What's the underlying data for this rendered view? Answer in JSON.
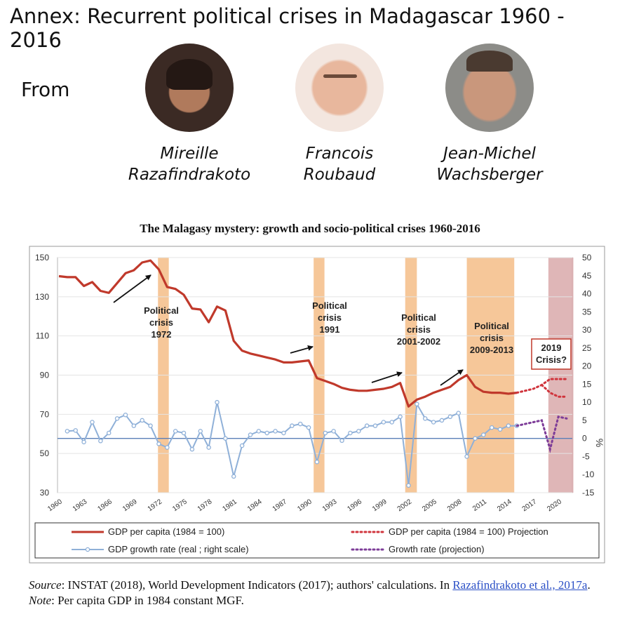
{
  "page": {
    "title": "Annex: Recurrent political crises in Madagascar 1960 - 2016",
    "from_label": "From",
    "authors": [
      {
        "first": "Mireille",
        "last": "Razafindrakoto"
      },
      {
        "first": "Francois",
        "last": "Roubaud"
      },
      {
        "first": "Jean-Michel",
        "last": "Wachsberger"
      }
    ]
  },
  "source_note": {
    "source_label": "Source",
    "text1": ": INSTAT (2018), World Development Indicators (2017); authors' calculations. In ",
    "link_text": "Razafindrakoto et al., 2017a",
    "text2": ". ",
    "note_label": "Note",
    "text3": ": Per capita GDP in 1984 constant MGF."
  },
  "chart_data": {
    "type": "line",
    "title": "The Malagasy mystery: growth and socio-political crises 1960-2016",
    "x_ticks": [
      1960,
      1963,
      1966,
      1969,
      1972,
      1975,
      1978,
      1981,
      1984,
      1987,
      1990,
      1993,
      1996,
      1999,
      2002,
      2005,
      2008,
      2011,
      2014,
      2017,
      2020
    ],
    "xlim": [
      1960,
      2021
    ],
    "y_left": {
      "ticks": [
        30,
        50,
        70,
        90,
        110,
        130,
        150
      ],
      "lim": [
        30,
        150
      ]
    },
    "y_right": {
      "ticks": [
        -15,
        -10,
        -5,
        0,
        5,
        10,
        15,
        20,
        25,
        30,
        35,
        40,
        45,
        50
      ],
      "lim": [
        -15,
        50
      ],
      "label": "%"
    },
    "crises": [
      {
        "label_lines": [
          "Political",
          "crisis",
          "1972"
        ],
        "start": 1971.9,
        "end": 1973.2
      },
      {
        "label_lines": [
          "Political",
          "crisis",
          "1991"
        ],
        "start": 1990.6,
        "end": 1991.9
      },
      {
        "label_lines": [
          "Political",
          "crisis",
          "2001-2002"
        ],
        "start": 2001.6,
        "end": 2003.0
      },
      {
        "label_lines": [
          "Political",
          "crisis",
          "2009-2013"
        ],
        "start": 2009.0,
        "end": 2014.7
      },
      {
        "label_lines": [
          "2019",
          "Crisis?"
        ],
        "start": 2018.8,
        "end": 2021.8
      }
    ],
    "series": [
      {
        "name": "GDP per capita (1984 = 100)",
        "axis": "left",
        "color": "#c0392b",
        "style": "solid",
        "x": [
          1960,
          1961,
          1962,
          1963,
          1964,
          1965,
          1966,
          1967,
          1968,
          1969,
          1970,
          1971,
          1972,
          1973,
          1974,
          1975,
          1976,
          1977,
          1978,
          1979,
          1980,
          1981,
          1982,
          1983,
          1984,
          1985,
          1986,
          1987,
          1988,
          1989,
          1990,
          1991,
          1992,
          1993,
          1994,
          1995,
          1996,
          1997,
          1998,
          1999,
          2000,
          2001,
          2002,
          2003,
          2004,
          2005,
          2006,
          2007,
          2008,
          2009,
          2010,
          2011,
          2012,
          2013,
          2014,
          2015
        ],
        "values": [
          140.5,
          140,
          140,
          135.5,
          137.5,
          133,
          132,
          137,
          142,
          143.5,
          147.5,
          148.5,
          144,
          135,
          134,
          131,
          124,
          123.5,
          117,
          125,
          123,
          107.5,
          102.5,
          101,
          100,
          99,
          98,
          96.5,
          96.5,
          97,
          97.5,
          88.5,
          87,
          85.5,
          83.5,
          82.5,
          82,
          82,
          82.5,
          83,
          84,
          86,
          74,
          77.5,
          79,
          81,
          82.5,
          84,
          87.5,
          90,
          84,
          81.5,
          81,
          81,
          80.5,
          81
        ]
      },
      {
        "name": "GDP per capita (1984 = 100) Projection",
        "axis": "left",
        "color": "#d0343c",
        "style": "dotted",
        "x": [
          2015,
          2016,
          2017,
          2018,
          2019,
          2020,
          2021
        ],
        "values": [
          81,
          82,
          83,
          85,
          88,
          88,
          88
        ]
      },
      {
        "name": "GDP per capita (1984 = 100) Projection",
        "axis": "left",
        "color": "#d0343c",
        "style": "dotted",
        "x": [
          2018,
          2019,
          2020,
          2021
        ],
        "values": [
          85,
          81,
          79,
          79
        ]
      },
      {
        "name": "GDP growth rate (real ; right scale)",
        "axis": "right",
        "color": "#8fb0d8",
        "style": "marker",
        "x": [
          1961,
          1962,
          1963,
          1964,
          1965,
          1966,
          1967,
          1968,
          1969,
          1970,
          1971,
          1972,
          1973,
          1974,
          1975,
          1976,
          1977,
          1978,
          1979,
          1980,
          1981,
          1982,
          1983,
          1984,
          1985,
          1986,
          1987,
          1988,
          1989,
          1990,
          1991,
          1992,
          1993,
          1994,
          1995,
          1996,
          1997,
          1998,
          1999,
          2000,
          2001,
          2002,
          2003,
          2004,
          2005,
          2006,
          2007,
          2008,
          2009,
          2010,
          2011,
          2012,
          2013,
          2014,
          2015
        ],
        "values": [
          2,
          2.2,
          -1,
          4.5,
          -0.7,
          1.5,
          5.5,
          6.5,
          3.5,
          5,
          3.5,
          -1.5,
          -2.5,
          2,
          1.5,
          -3,
          2,
          -2.5,
          10,
          0,
          -10.5,
          -2,
          1,
          2,
          1.5,
          2,
          1.5,
          3.5,
          4,
          3,
          -6.5,
          1.5,
          2,
          -0.6,
          1.5,
          2,
          3.5,
          3.5,
          4.5,
          4.5,
          6,
          -13,
          9.5,
          5.5,
          4.5,
          5,
          6,
          7,
          -5,
          0,
          1,
          3,
          2.5,
          3.5,
          3.5
        ]
      },
      {
        "name": "Growth rate (projection)",
        "axis": "right",
        "color": "#7d3c98",
        "style": "dotted",
        "x": [
          2015,
          2016,
          2017,
          2018,
          2019,
          2020,
          2021
        ],
        "values": [
          3.5,
          4,
          4.5,
          5,
          -3,
          6,
          5.5
        ]
      }
    ],
    "legend": [
      {
        "label": "GDP per capita (1984 = 100)",
        "color": "#c0392b",
        "style": "solid"
      },
      {
        "label": "GDP per capita (1984 = 100) Projection",
        "color": "#d0343c",
        "style": "dotted"
      },
      {
        "label": "GDP growth rate (real ; right scale)",
        "color": "#8fb0d8",
        "style": "marker"
      },
      {
        "label": "Growth rate (projection)",
        "color": "#7d3c98",
        "style": "dotted"
      }
    ]
  }
}
